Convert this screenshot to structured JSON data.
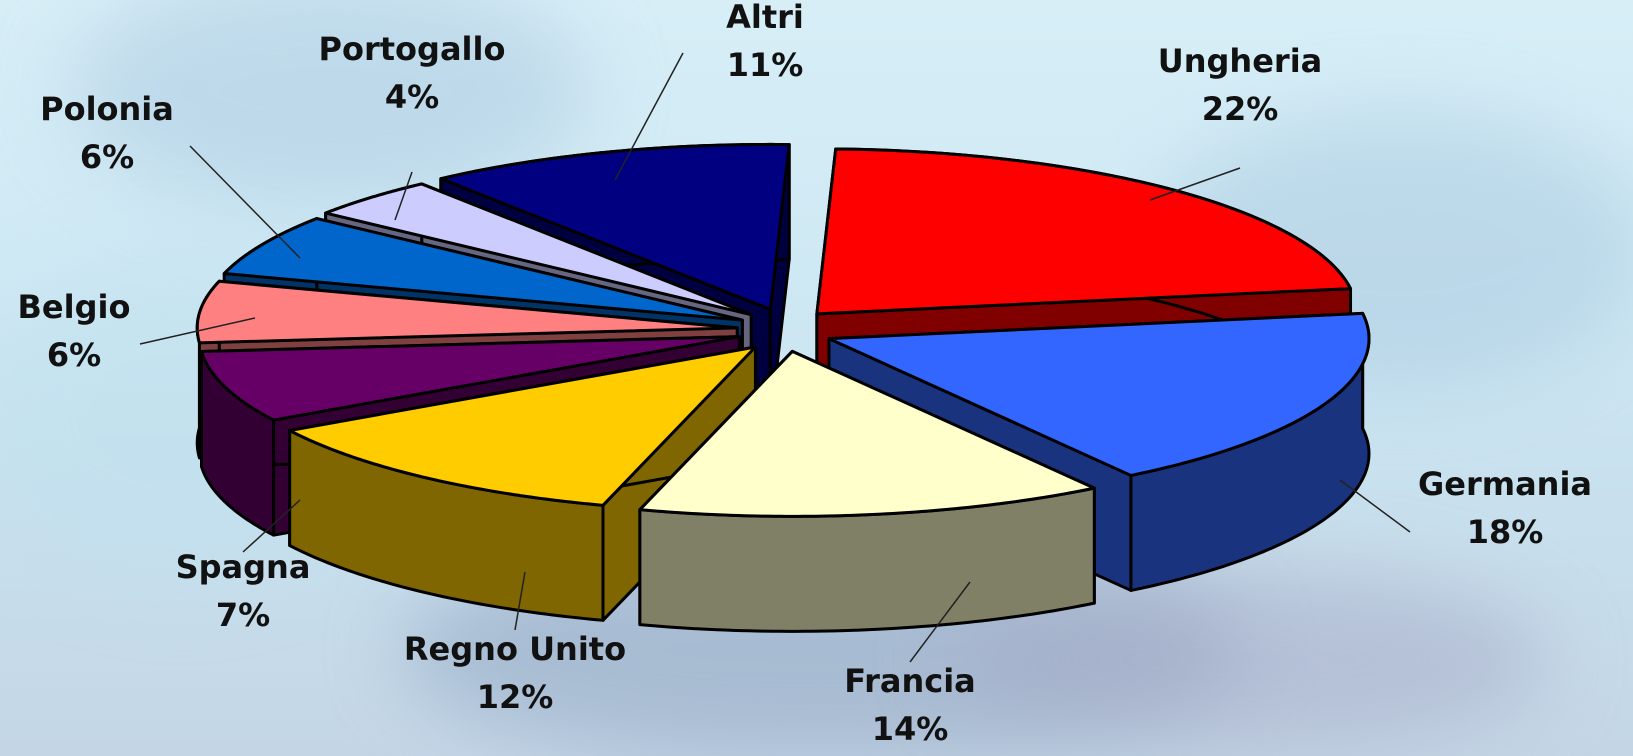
{
  "chart_data": {
    "type": "pie",
    "style": "3d-exploded",
    "slices": [
      {
        "label": "Ungheria",
        "value": 22,
        "pct_label": "22%",
        "color": "#ff0000",
        "side": "#800000"
      },
      {
        "label": "Germania",
        "value": 18,
        "pct_label": "18%",
        "color": "#3366ff",
        "side": "#1a337f"
      },
      {
        "label": "Francia",
        "value": 14,
        "pct_label": "14%",
        "color": "#ffffcc",
        "side": "#808066"
      },
      {
        "label": "Regno Unito",
        "value": 12,
        "pct_label": "12%",
        "color": "#ffcc00",
        "side": "#806600"
      },
      {
        "label": "Spagna",
        "value": 7,
        "pct_label": "7%",
        "color": "#660066",
        "side": "#330033"
      },
      {
        "label": "Belgio",
        "value": 6,
        "pct_label": "6%",
        "color": "#ff8080",
        "side": "#804040"
      },
      {
        "label": "Polonia",
        "value": 6,
        "pct_label": "6%",
        "color": "#0066cc",
        "side": "#003366"
      },
      {
        "label": "Portogallo",
        "value": 4,
        "pct_label": "4%",
        "color": "#ccccff",
        "side": "#666680"
      },
      {
        "label": "Altri",
        "value": 11,
        "pct_label": "11%",
        "color": "#000080",
        "side": "#000040"
      }
    ],
    "legend": "none"
  }
}
